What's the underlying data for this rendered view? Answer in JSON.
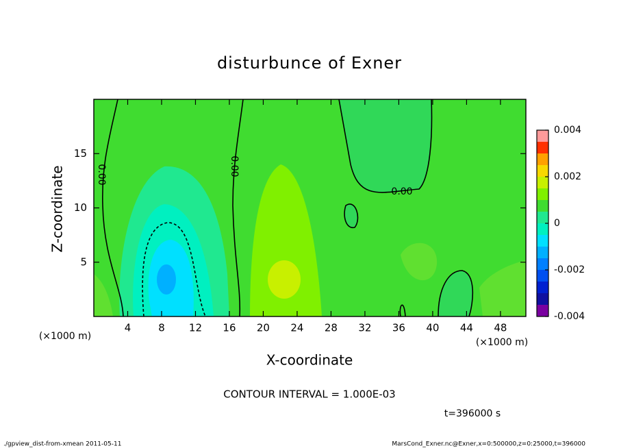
{
  "chart_data": {
    "type": "contour",
    "title": "disturbunce of Exner",
    "x_label": "X-coordinate",
    "y_label": "Z-coordinate",
    "x_unit_labels": [
      "(×1000 m)",
      "(×1000 m)"
    ],
    "xlim": [
      0,
      51
    ],
    "ylim": [
      0,
      20
    ],
    "xticks": [
      4,
      8,
      12,
      16,
      20,
      24,
      28,
      32,
      36,
      40,
      44,
      48
    ],
    "yticks": [
      5,
      10,
      15
    ],
    "levels": [
      -0.004,
      -0.0035,
      -0.003,
      -0.0025,
      -0.002,
      -0.0015,
      -0.001,
      -0.0005,
      0,
      0.0005,
      0.001,
      0.0015,
      0.002,
      0.0025,
      0.003,
      0.0035,
      0.004
    ],
    "level_colors": [
      "#7a00a0",
      "#1010a0",
      "#0020d0",
      "#0050f0",
      "#0080ff",
      "#00b0ff",
      "#00e0ff",
      "#00f0c0",
      "#20e890",
      "#40dc30",
      "#80f000",
      "#c8f000",
      "#f8d800",
      "#ffa000",
      "#ff3000",
      "#ff9a9a"
    ],
    "colorbar_ticks": [
      -0.004,
      -0.002,
      0,
      0.002,
      0.004
    ],
    "contour_labels": [
      "0.00",
      "0.00",
      "0.00"
    ],
    "contour_interval": "CONTOUR INTERVAL = 1.000E-03",
    "time_label": "t=396000 s",
    "footer_left": "./gpview_dist-from-xmean  2011-05-11",
    "footer_right": "MarsCond_Exner.nc@Exner,x=0:500000,z=0:25000,t=396000"
  }
}
